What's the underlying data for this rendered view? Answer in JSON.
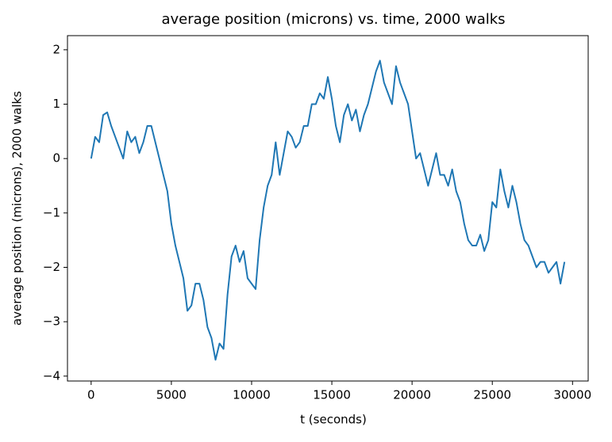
{
  "chart_data": {
    "type": "line",
    "title": "average position (microns) vs. time, 2000 walks",
    "x_label": "t (seconds)",
    "y_label": "average position (microns), 2000 walks",
    "x": [
      0,
      250,
      500,
      750,
      1000,
      1250,
      1500,
      1750,
      2000,
      2250,
      2500,
      2750,
      3000,
      3250,
      3500,
      3750,
      4000,
      4250,
      4500,
      4750,
      5000,
      5250,
      5500,
      5750,
      6000,
      6250,
      6500,
      6750,
      7000,
      7250,
      7500,
      7750,
      8000,
      8250,
      8500,
      8750,
      9000,
      9250,
      9500,
      9750,
      10000,
      10250,
      10500,
      10750,
      11000,
      11250,
      11500,
      11750,
      12000,
      12250,
      12500,
      12750,
      13000,
      13250,
      13500,
      13750,
      14000,
      14250,
      14500,
      14750,
      15000,
      15250,
      15500,
      15750,
      16000,
      16250,
      16500,
      16750,
      17000,
      17250,
      17500,
      17750,
      18000,
      18250,
      18500,
      18750,
      19000,
      19250,
      19500,
      19750,
      20000,
      20250,
      20500,
      20750,
      21000,
      21250,
      21500,
      21750,
      22000,
      22250,
      22500,
      22750,
      23000,
      23250,
      23500,
      23750,
      24000,
      24250,
      24500,
      24750,
      25000,
      25250,
      25500,
      25750,
      26000,
      26250,
      26500,
      26750,
      27000,
      27250,
      27500,
      27750,
      28000,
      28250,
      28500,
      28750,
      29000,
      29250,
      29500
    ],
    "series": [
      {
        "name": "average position",
        "color": "#1f77b4",
        "values": [
          0,
          0.4,
          0.3,
          0.8,
          0.85,
          0.6,
          0.4,
          0.2,
          0.0,
          0.5,
          0.3,
          0.4,
          0.1,
          0.3,
          0.6,
          0.6,
          0.3,
          0,
          -0.3,
          -0.6,
          -1.2,
          -1.6,
          -1.9,
          -2.2,
          -2.8,
          -2.7,
          -2.3,
          -2.3,
          -2.6,
          -3.1,
          -3.3,
          -3.7,
          -3.4,
          -3.5,
          -2.5,
          -1.8,
          -1.6,
          -1.9,
          -1.7,
          -2.2,
          -2.3,
          -2.4,
          -1.5,
          -0.9,
          -0.5,
          -0.3,
          0.3,
          -0.3,
          0.1,
          0.5,
          0.4,
          0.2,
          0.3,
          0.6,
          0.6,
          1.0,
          1.0,
          1.2,
          1.1,
          1.5,
          1.1,
          0.6,
          0.3,
          0.8,
          1.0,
          0.7,
          0.9,
          0.5,
          0.8,
          1.0,
          1.3,
          1.6,
          1.8,
          1.4,
          1.2,
          1.0,
          1.7,
          1.4,
          1.2,
          1.0,
          0.5,
          0.0,
          0.1,
          -0.2,
          -0.5,
          -0.2,
          0.1,
          -0.3,
          -0.3,
          -0.5,
          -0.2,
          -0.6,
          -0.8,
          -1.2,
          -1.5,
          -1.6,
          -1.6,
          -1.4,
          -1.7,
          -1.5,
          -0.8,
          -0.9,
          -0.2,
          -0.6,
          -0.9,
          -0.5,
          -0.8,
          -1.2,
          -1.5,
          -1.6,
          -1.8,
          -2.0,
          -1.9,
          -1.9,
          -2.1,
          -2.0,
          -1.9,
          -2.3,
          -1.9
        ]
      }
    ],
    "xlim": [
      -1475,
      30975
    ],
    "ylim": [
      -4.09,
      2.26
    ],
    "xticks": [
      0,
      5000,
      10000,
      15000,
      20000,
      25000,
      30000
    ],
    "yticks": [
      {
        "value": -4,
        "label": "−4"
      },
      {
        "value": -3,
        "label": "−3"
      },
      {
        "value": -2,
        "label": "−2"
      },
      {
        "value": -1,
        "label": "−1"
      },
      0,
      1,
      2
    ]
  }
}
